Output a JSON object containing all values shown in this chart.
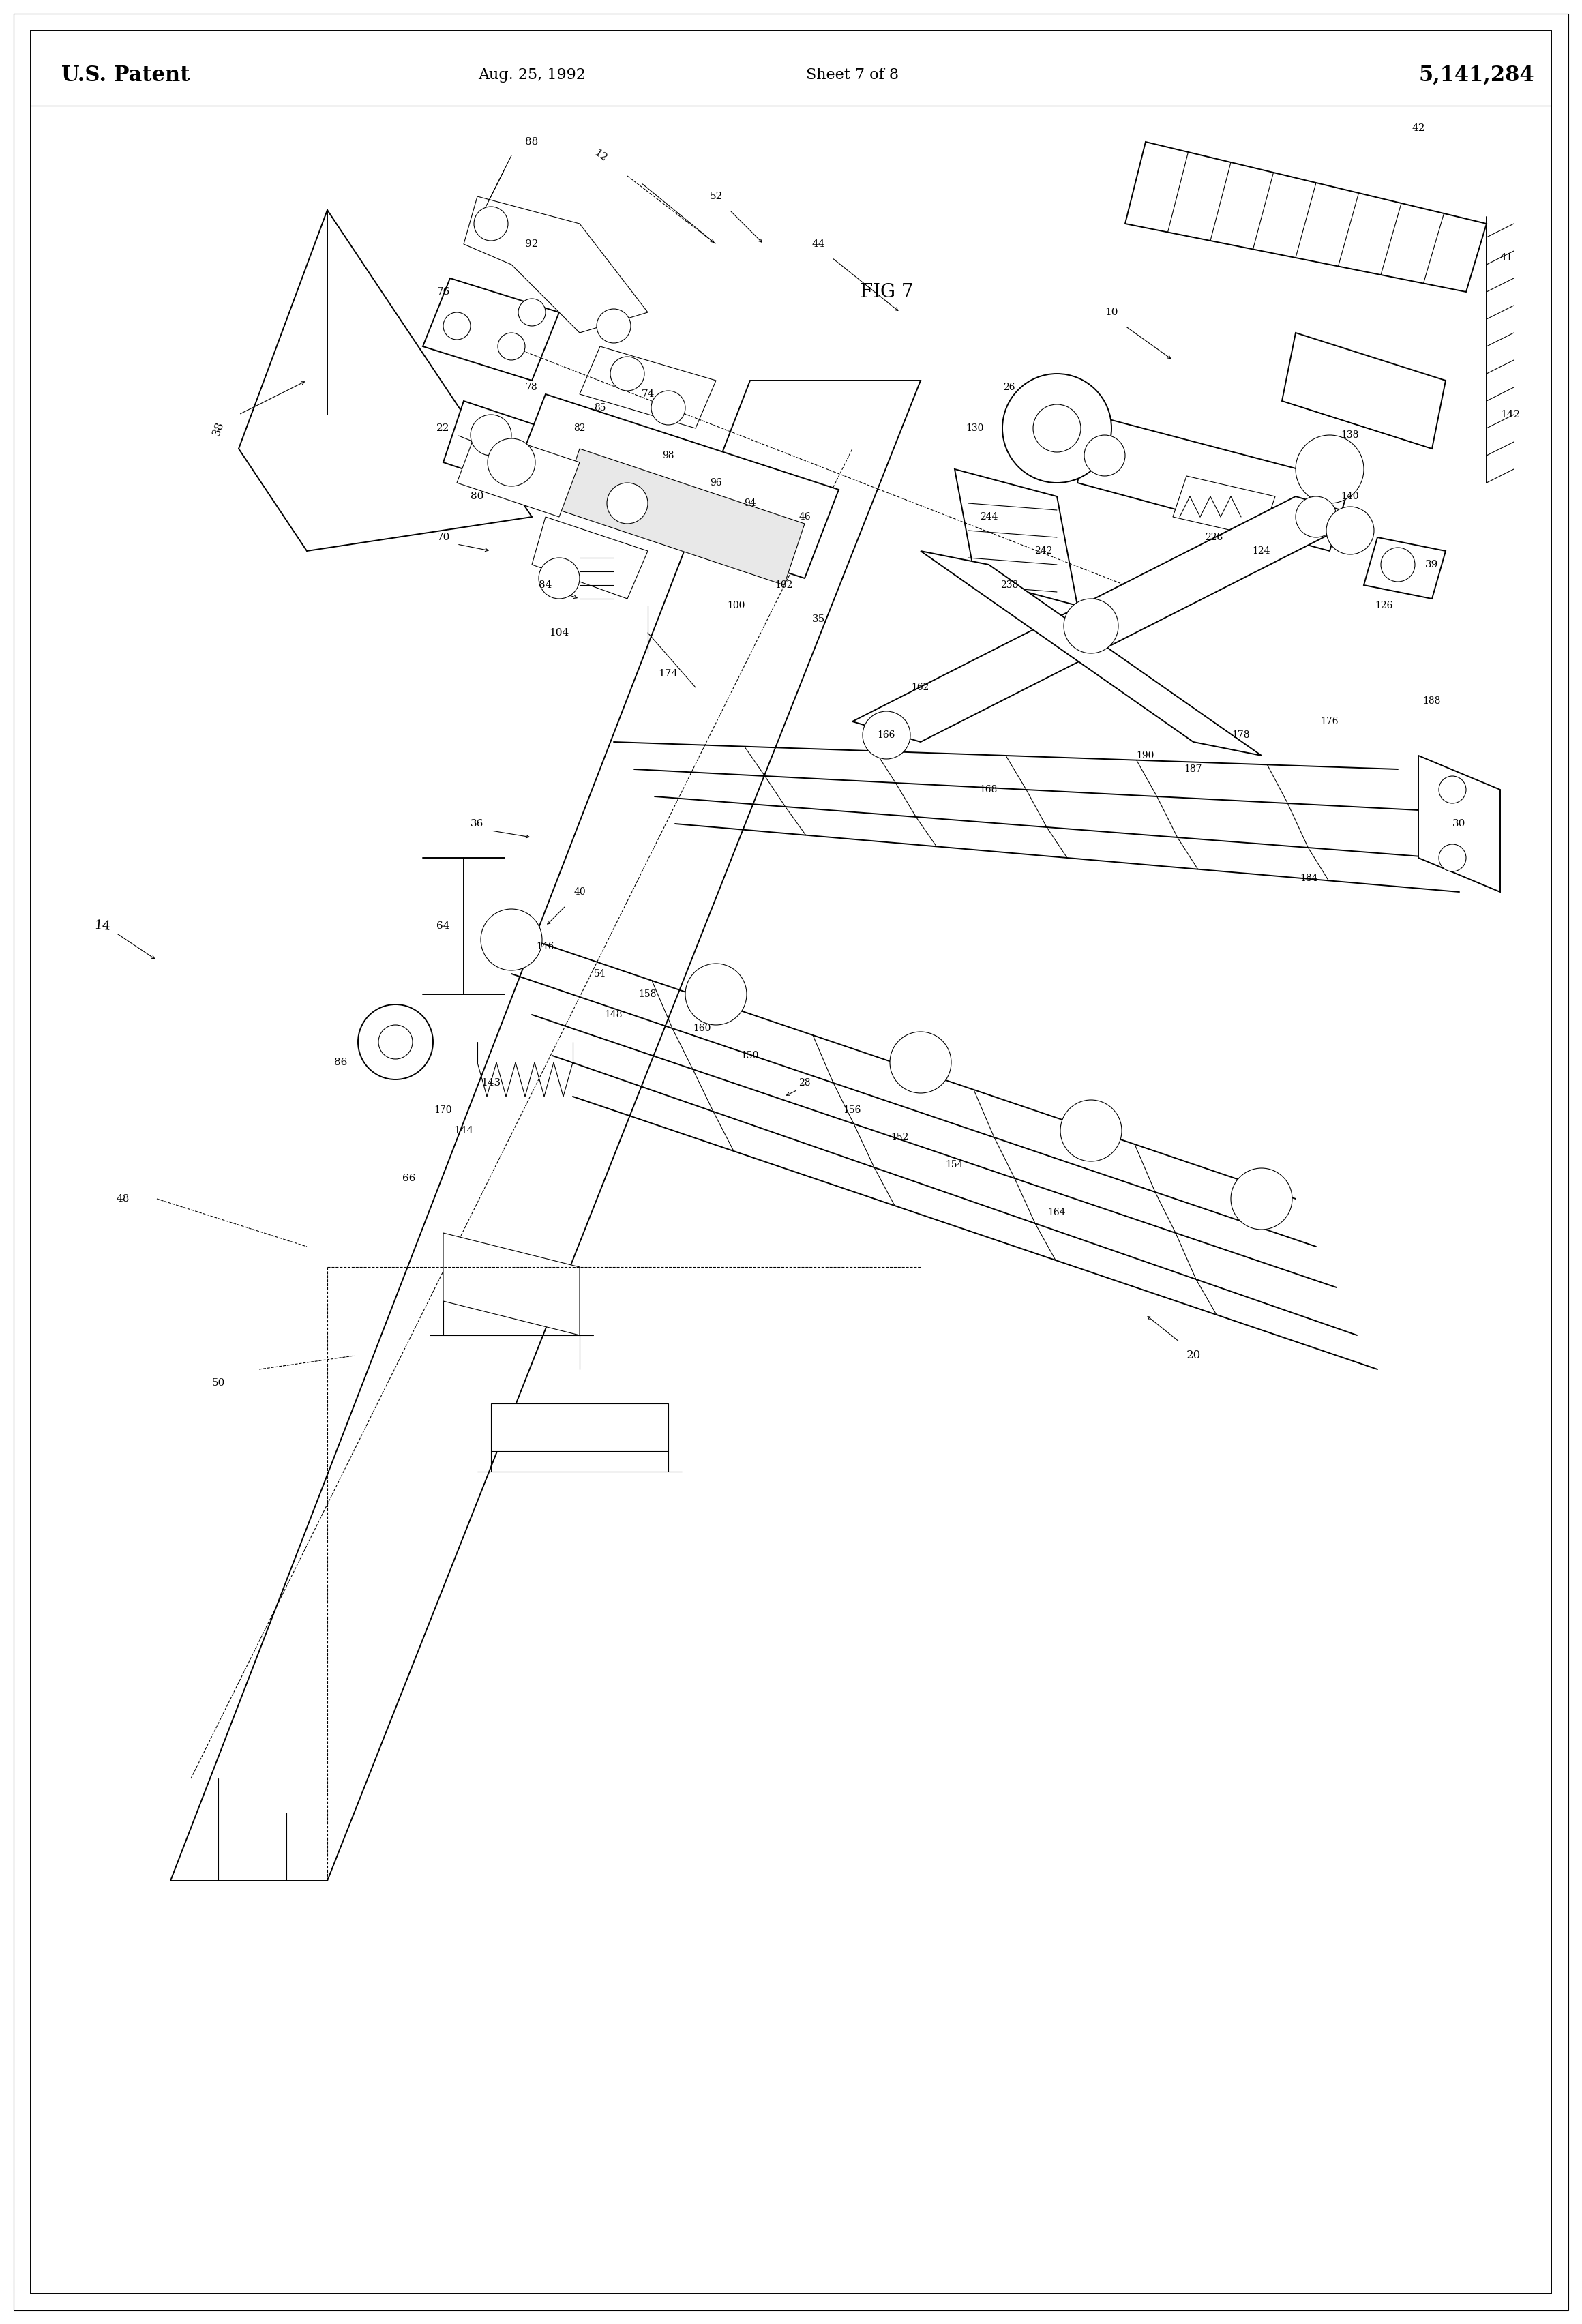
{
  "title_left": "U.S. Patent",
  "title_date": "Aug. 25, 1992",
  "title_sheet": "Sheet 7 of 8",
  "title_patent": "5,141,284",
  "fig_label": "FIG 7",
  "background_color": "#ffffff",
  "line_color": "#000000",
  "page_width": 23.2,
  "page_height": 34.08
}
